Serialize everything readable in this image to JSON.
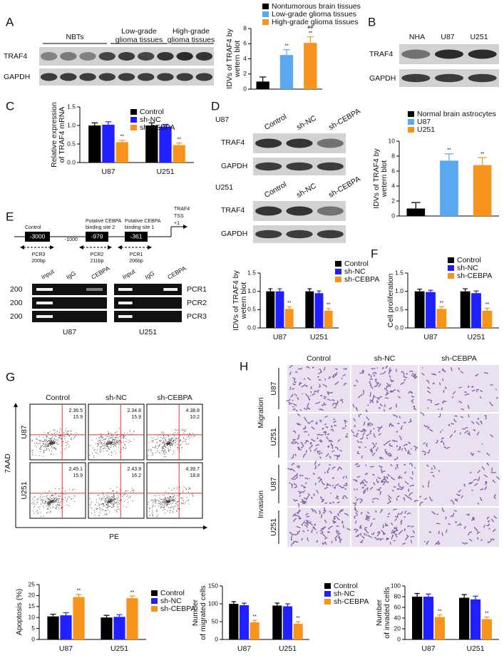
{
  "panel_labels": [
    "A",
    "B",
    "C",
    "D",
    "E",
    "F",
    "G",
    "H"
  ],
  "blot_a": {
    "groups": [
      [
        "NBTs"
      ],
      [
        "Low-grade",
        "glioma tissues"
      ],
      [
        "High-grade",
        "glioma tissues"
      ]
    ],
    "rows": [
      "TRAF4",
      "GAPDH"
    ]
  },
  "blot_b": {
    "lanes": [
      "NHA",
      "U87",
      "U251"
    ],
    "rows": [
      "TRAF4",
      "GAPDH"
    ]
  },
  "blot_d": {
    "blocks": [
      {
        "cell": "U87",
        "lanes": [
          "Control",
          "sh-NC",
          "sh-CEBPA"
        ],
        "rows": [
          "TRAF4",
          "GAPDH"
        ]
      },
      {
        "cell": "U251",
        "lanes": [
          "Control",
          "sh-NC",
          "sh-CEBPA"
        ],
        "rows": [
          "TRAF4",
          "GAPDH"
        ]
      }
    ]
  },
  "promoter": {
    "tss": [
      "TRAF4",
      "TSS",
      "+1"
    ],
    "marker": "-1000",
    "sites": [
      {
        "title": [
          "Control"
        ],
        "pos": "-3000",
        "pcr": "PCR3",
        "size": "200bp"
      },
      {
        "title": [
          "Putative CEBPA",
          "binding site 2"
        ],
        "pos": "-979",
        "pcr": "PCR2",
        "size": "211bp"
      },
      {
        "title": [
          "Putative CEBPA",
          "binding site 1"
        ],
        "pos": "-361",
        "pcr": "PCR1",
        "size": "206bp"
      }
    ]
  },
  "chip": {
    "gels": [
      {
        "cell": "U87",
        "lanes": [
          "Input",
          "IgG",
          "CEBPA"
        ]
      },
      {
        "cell": "U251",
        "lanes": [
          "Input",
          "IgG",
          "CEBPA"
        ]
      }
    ],
    "markers": [
      "200",
      "200",
      "200"
    ],
    "products": [
      "PCR1",
      "PCR2",
      "PCR3"
    ]
  },
  "flow": {
    "columns": [
      "Control",
      "sh-NC",
      "sh-CEBPA"
    ],
    "rows": [
      "U87",
      "U251"
    ],
    "ylabel": "7AAD",
    "xlabel": "PE",
    "quadrants": [
      [
        [
          "2.36.5",
          "15.9"
        ],
        [
          "2.34.8",
          "15.9"
        ],
        [
          "4.38.8",
          "10.2"
        ]
      ],
      [
        [
          "2.45.1",
          "15.9"
        ],
        [
          "2.43.9",
          "16.2"
        ],
        [
          "4.39.7",
          "18.8"
        ]
      ]
    ]
  },
  "micrographs": {
    "columns": [
      "Control",
      "sh-NC",
      "sh-CEBPA"
    ],
    "groups": [
      {
        "name": "Migration",
        "rows": [
          "U87",
          "U251"
        ]
      },
      {
        "name": "Invasion",
        "rows": [
          "U87",
          "U251"
        ]
      }
    ]
  },
  "chart_data": [
    {
      "type": "bar",
      "ylabel": [
        "IDVs of TRAF4 by",
        "wetern blot"
      ],
      "categories": [
        null
      ],
      "series": [
        {
          "name": "Nontumorous brain tissues",
          "color": "#000000",
          "values": [
            1.0
          ],
          "errors": [
            0.6
          ]
        },
        {
          "name": "Low-grade glioma tissues",
          "color": "#5aa9f0",
          "values": [
            4.5
          ],
          "errors": [
            0.7
          ],
          "significance": [
            [
              "**"
            ]
          ]
        },
        {
          "name": "High-grade glioma tissues",
          "color": "#f7941d",
          "values": [
            6.1
          ],
          "errors": [
            0.8
          ],
          "significance": [
            [
              "**",
              "##"
            ]
          ]
        }
      ],
      "ylim": [
        0,
        8
      ],
      "yticks": [
        0,
        2,
        4,
        6,
        8
      ]
    },
    {
      "type": "bar",
      "ylabel": [
        "Relative expression",
        "of TRAF4 mRNA"
      ],
      "categories": [
        "U87",
        "U251"
      ],
      "series": [
        {
          "name": "Control",
          "color": "#000000",
          "values": [
            1.0,
            1.0
          ],
          "errors": [
            0.07,
            0.07
          ]
        },
        {
          "name": "sh-NC",
          "color": "#1f1fff",
          "values": [
            1.02,
            0.97
          ],
          "errors": [
            0.08,
            0.06
          ]
        },
        {
          "name": "sh-CEBPA",
          "color": "#f7941d",
          "values": [
            0.55,
            0.47
          ],
          "errors": [
            0.05,
            0.06
          ],
          "significance": [
            [
              "**"
            ],
            [
              "**"
            ]
          ]
        }
      ],
      "ylim": [
        0,
        1.5
      ],
      "yticks": [
        {
          "value": 0,
          "label": "0.0"
        },
        0.5,
        {
          "value": 1,
          "label": "1.0"
        },
        1.5
      ]
    },
    {
      "type": "bar",
      "ylabel": [
        "IDVs of TRAF4 by",
        "wetern blot"
      ],
      "categories": [
        null
      ],
      "series": [
        {
          "name": "Normal brain astrocytes",
          "color": "#000000",
          "values": [
            1.0
          ],
          "errors": [
            0.8
          ]
        },
        {
          "name": "U87",
          "color": "#5aa9f0",
          "values": [
            7.4
          ],
          "errors": [
            0.9
          ],
          "significance": [
            [
              "**"
            ]
          ]
        },
        {
          "name": "U251",
          "color": "#f7941d",
          "values": [
            6.8
          ],
          "errors": [
            1.0
          ],
          "significance": [
            [
              "**"
            ]
          ]
        }
      ],
      "ylim": [
        0,
        10
      ],
      "yticks": [
        0,
        2,
        4,
        6,
        8,
        10
      ]
    },
    {
      "type": "bar",
      "ylabel": [
        "IDVs of TRAF4 by",
        "wetern blot"
      ],
      "categories": [
        "U87",
        "U251"
      ],
      "series": [
        {
          "name": "Control",
          "color": "#000000",
          "values": [
            1.0,
            1.0
          ],
          "errors": [
            0.07,
            0.07
          ]
        },
        {
          "name": "sh-NC",
          "color": "#1f1fff",
          "values": [
            1.0,
            0.95
          ],
          "errors": [
            0.07,
            0.06
          ]
        },
        {
          "name": "sh-CEBPA",
          "color": "#f7941d",
          "values": [
            0.52,
            0.47
          ],
          "errors": [
            0.06,
            0.06
          ],
          "significance": [
            [
              "**"
            ],
            [
              "**"
            ]
          ]
        }
      ],
      "ylim": [
        0,
        1.5
      ],
      "yticks": [
        {
          "value": 0,
          "label": "0.0"
        },
        0.5,
        {
          "value": 1,
          "label": "1.0"
        },
        1.5
      ]
    },
    {
      "type": "bar",
      "ylabel": [
        "Cell proliferation"
      ],
      "categories": [
        "U87",
        "U251"
      ],
      "series": [
        {
          "name": "Control",
          "color": "#000000",
          "values": [
            1.0,
            1.0
          ],
          "errors": [
            0.06,
            0.07
          ]
        },
        {
          "name": "sh-NC",
          "color": "#1f1fff",
          "values": [
            0.98,
            0.95
          ],
          "errors": [
            0.05,
            0.06
          ]
        },
        {
          "name": "sh-CEBPA",
          "color": "#f7941d",
          "values": [
            0.52,
            0.47
          ],
          "errors": [
            0.06,
            0.07
          ],
          "significance": [
            [
              "**"
            ],
            [
              "**"
            ]
          ]
        }
      ],
      "ylim": [
        0,
        1.5
      ],
      "yticks": [
        {
          "value": 0,
          "label": "0.0"
        },
        0.5,
        {
          "value": 1,
          "label": "1.0"
        },
        1.5
      ]
    },
    {
      "type": "bar",
      "ylabel": [
        "Apoptosis (%)"
      ],
      "categories": [
        "U87",
        "U251"
      ],
      "series": [
        {
          "name": "Control",
          "color": "#000000",
          "values": [
            10.5,
            10.0
          ],
          "errors": [
            1.0,
            1.0
          ]
        },
        {
          "name": "sh-NC",
          "color": "#1f1fff",
          "values": [
            11.0,
            10.3
          ],
          "errors": [
            1.2,
            1.0
          ]
        },
        {
          "name": "sh-CEBPA",
          "color": "#f7941d",
          "values": [
            19.3,
            18.8
          ],
          "errors": [
            1.2,
            1.0
          ],
          "significance": [
            [
              "**"
            ],
            [
              "**"
            ]
          ]
        }
      ],
      "ylim": [
        0,
        25
      ],
      "yticks": [
        0,
        5,
        10,
        15,
        20,
        25
      ]
    },
    {
      "type": "bar",
      "ylabel": [
        "Number",
        "of migrated cells"
      ],
      "categories": [
        "U87",
        "U251"
      ],
      "series": [
        {
          "name": "Control",
          "color": "#000000",
          "values": [
            100,
            95
          ],
          "errors": [
            6,
            7
          ]
        },
        {
          "name": "sh-NC",
          "color": "#1f1fff",
          "values": [
            96,
            93
          ],
          "errors": [
            6,
            7
          ]
        },
        {
          "name": "sh-CEBPA",
          "color": "#f7941d",
          "values": [
            48,
            44
          ],
          "errors": [
            6,
            6
          ],
          "significance": [
            [
              "**"
            ],
            [
              "**"
            ]
          ]
        }
      ],
      "ylim": [
        0,
        150
      ],
      "yticks": [
        0,
        50,
        100,
        150
      ]
    },
    {
      "type": "bar",
      "ylabel": [
        "Number",
        "of invaded cells"
      ],
      "categories": [
        "U87",
        "U251"
      ],
      "series": [
        {
          "color": "#000000",
          "values": [
            80,
            78
          ],
          "errors": [
            6,
            6
          ]
        },
        {
          "color": "#1f1fff",
          "values": [
            80,
            75
          ],
          "errors": [
            5,
            6
          ]
        },
        {
          "color": "#f7941d",
          "values": [
            42,
            38
          ],
          "errors": [
            4,
            4
          ],
          "significance": [
            [
              "**"
            ],
            [
              "**"
            ]
          ]
        }
      ],
      "ylim": [
        0,
        100
      ],
      "yticks": [
        0,
        20,
        40,
        60,
        80,
        100
      ]
    }
  ]
}
